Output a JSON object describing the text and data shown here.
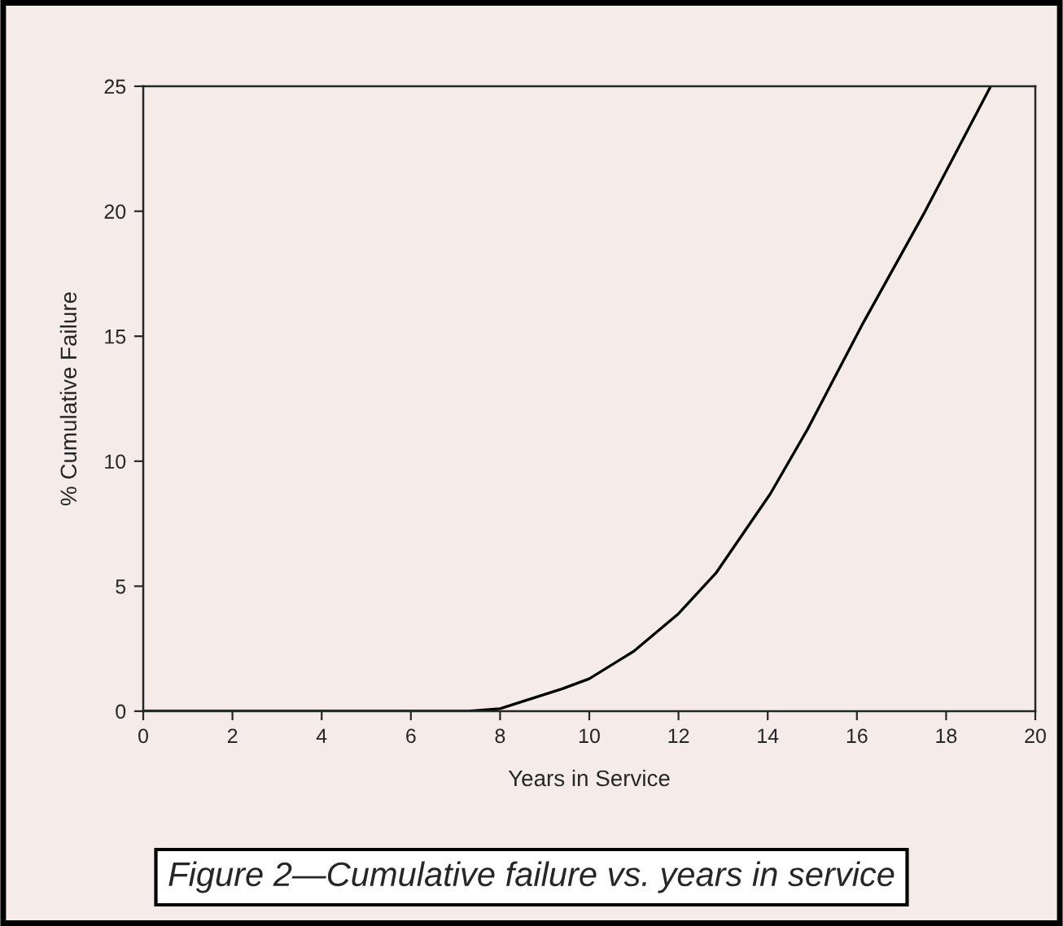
{
  "chart_data": {
    "type": "line",
    "xlabel": "Years in Service",
    "ylabel": "% Cumulative Failure",
    "annotations": [
      "Figure 2—Cumulative failure vs. years in service"
    ],
    "x": [
      0,
      6,
      7.3,
      8.0,
      8.7,
      9.4,
      10.0,
      11.0,
      12.0,
      12.85,
      14.06,
      14.9,
      16.1,
      17.5,
      19.0
    ],
    "series": [
      {
        "color": "#000000",
        "values": [
          0,
          0,
          0,
          0.1,
          0.5,
          0.9,
          1.3,
          2.4,
          3.9,
          5.55,
          8.7,
          11.3,
          15.4,
          19.9,
          25
        ]
      }
    ],
    "xlim": [
      0,
      20
    ],
    "ylim": [
      0,
      25
    ],
    "xticks": [
      0,
      2,
      4,
      6,
      8,
      10,
      12,
      14,
      16,
      18,
      20
    ],
    "yticks": [
      0,
      5,
      10,
      15,
      20,
      25
    ],
    "grid": false,
    "legend": false,
    "marker": "none",
    "line_style": "solid"
  }
}
